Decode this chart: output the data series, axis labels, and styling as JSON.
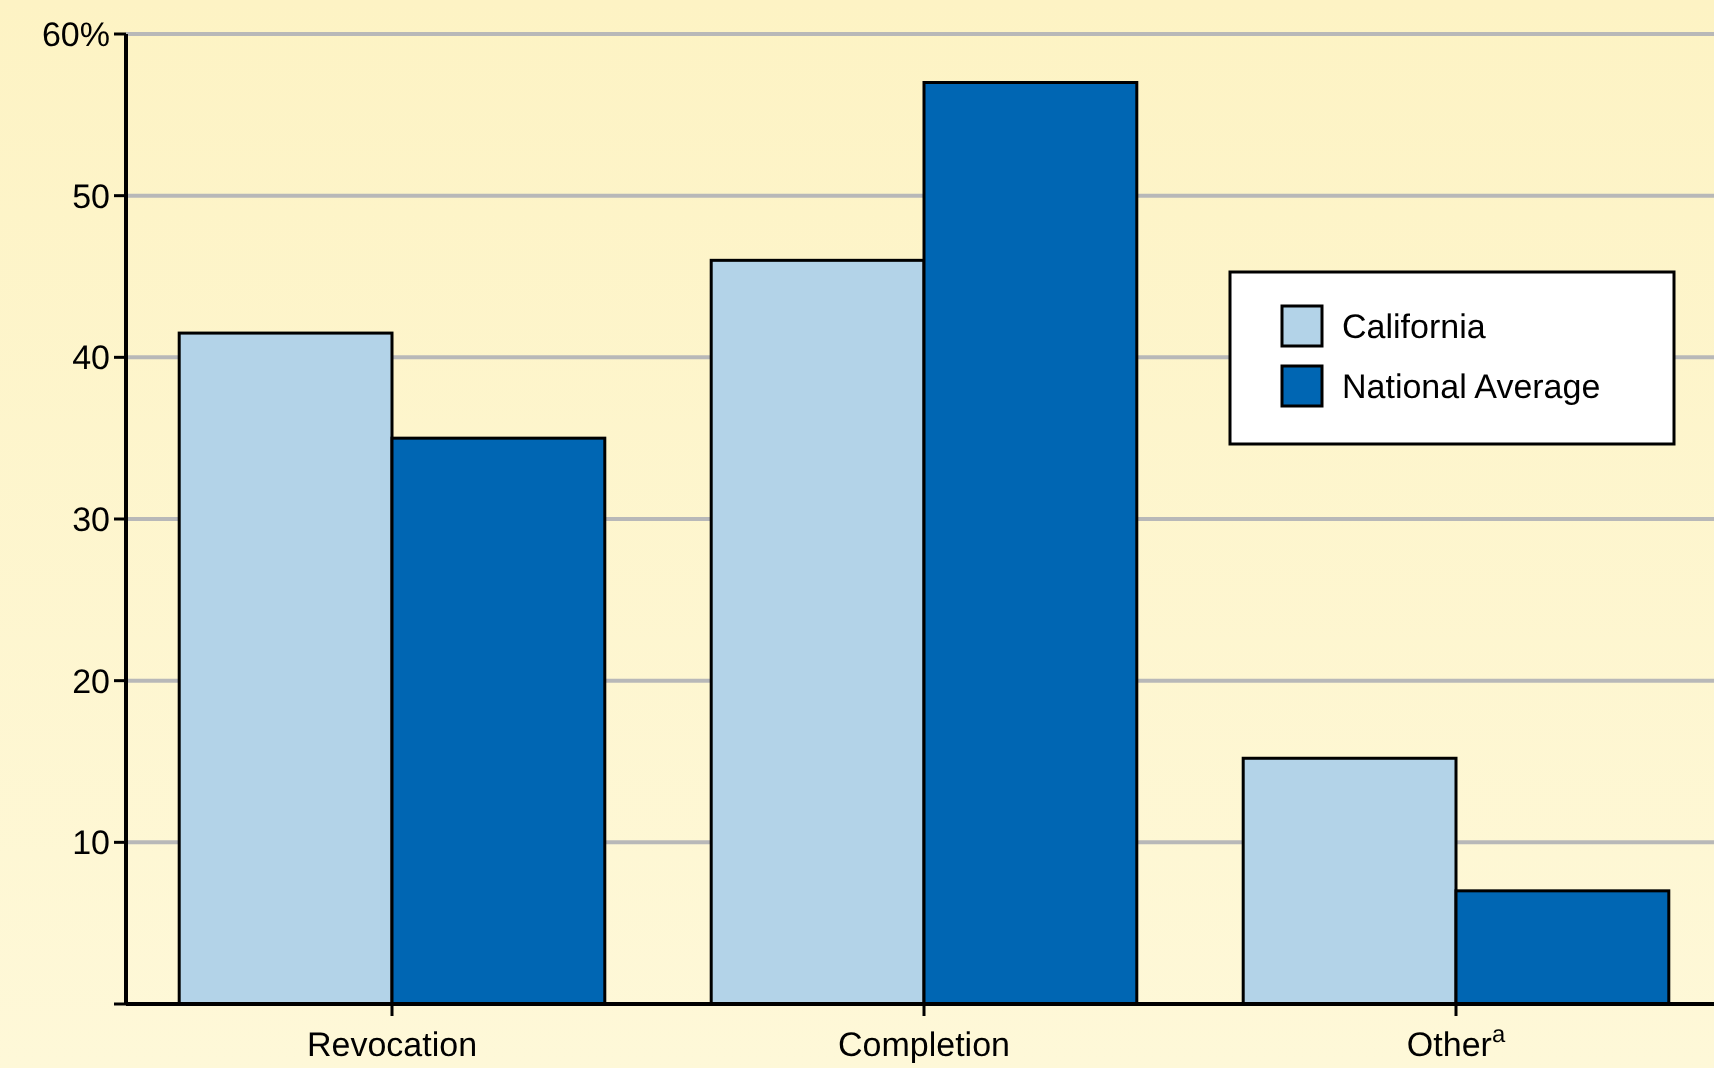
{
  "chart_data": {
    "type": "bar",
    "categories": [
      "Revocation",
      "Completion",
      "Other$^{a}$"
    ],
    "series": [
      {
        "name": "California",
        "color": "#b3d3e8",
        "values": [
          41.5,
          46,
          15.2
        ]
      },
      {
        "name": "National Average",
        "color": "#0066b3",
        "values": [
          35,
          57,
          7
        ]
      }
    ],
    "ylim": [
      0,
      60
    ],
    "yticks": [
      {
        "value": 0,
        "label": null
      },
      10,
      20,
      30,
      40,
      50,
      {
        "value": 60,
        "label": "60%"
      }
    ],
    "grid": "y",
    "legend": "top right"
  }
}
